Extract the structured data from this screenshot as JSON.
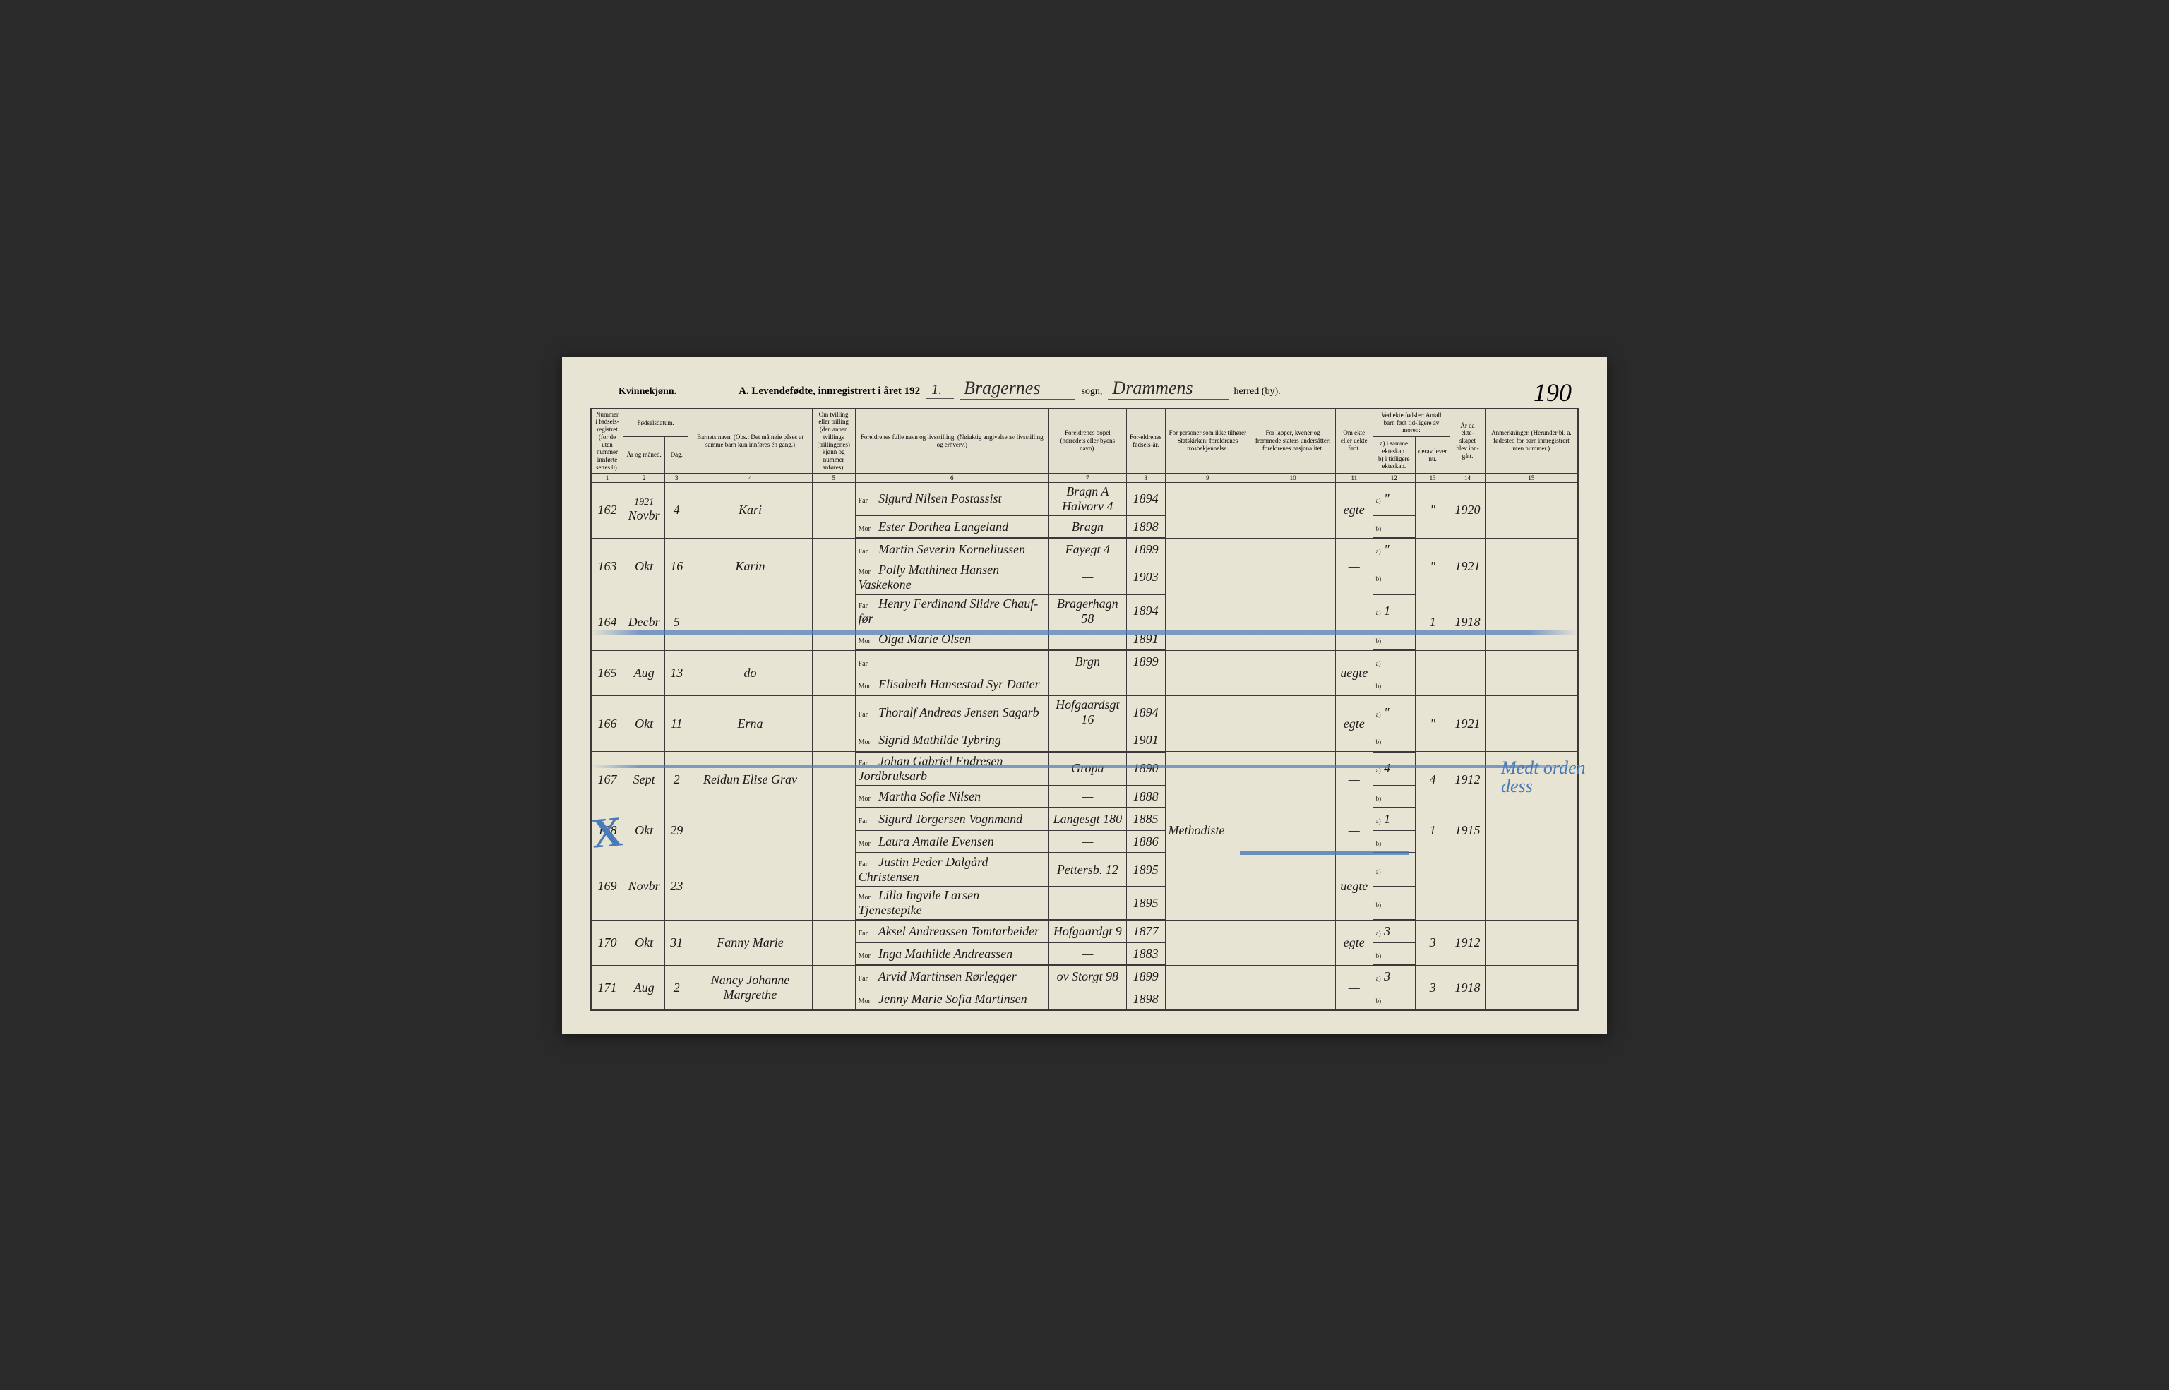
{
  "header": {
    "gender_label": "Kvinnekjønn.",
    "form_title_prefix": "A. Levendefødte, innregistrert i året 192",
    "year_suffix": "1.",
    "parish_label": "sogn,",
    "parish": "Bragernes",
    "district_label": "herred (by).",
    "district": "Drammens",
    "page_number": "190"
  },
  "columns": {
    "c1": "Nummer i fødsels-registret (for de uten nummer innførte settes 0).",
    "c2": "År og måned.",
    "c3": "Dag.",
    "c2_3_group": "Fødselsdatum.",
    "c4": "Barnets navn.\n(Obs.: Det må nøie påses at samme barn kun innføres én gang.)",
    "c5": "Om tvilling eller trilling (den annen tvillings (trillingenes) kjønn og nummer anføres).",
    "c6": "Foreldrenes fulle navn og livsstilling.\n(Nøiaktig angivelse av livsstilling og erhverv.)",
    "c7": "Foreldrenes bopel (herredets eller byens navn).",
    "c8": "For-eldrenes fødsels-år.",
    "c9": "For personer som ikke tilhører Statskirken: foreldrenes trosbekjennelse.",
    "c10": "For lapper, kvener og fremmede staters undersåtter: foreldrenes nasjonalitet.",
    "c11": "Om ekte eller uekte født.",
    "c12_group": "Ved ekte fødsler: Antall barn født tid-ligere av moren:",
    "c12a": "a) i samme ekteskap.",
    "c12b": "b) i tidligere ekteskap.",
    "c13": "derav lever nu.",
    "c14": "År da ekte-skapet blev inn-gått.",
    "c15": "Anmerkninger.\n(Herunder bl. a. fødested for barn innregistrert uten nummer.)"
  },
  "colnums": [
    "1",
    "2",
    "3",
    "4",
    "5",
    "6",
    "7",
    "8",
    "9",
    "10",
    "11",
    "12",
    "13",
    "14",
    "15"
  ],
  "rows": [
    {
      "num": "162",
      "year_note": "1921",
      "month": "Novbr",
      "day": "4",
      "child": "Kari",
      "far": "Sigurd Nilsen Postassist",
      "mor": "Ester Dorthea Langeland",
      "addr_f": "Bragn A Halvorv 4",
      "addr_m": "Bragn",
      "byear_f": "1894",
      "byear_m": "1898",
      "relig": "",
      "legit": "egte",
      "prev_a": "\"",
      "prev_b": "",
      "live": "\"",
      "myear": "1920",
      "notes": ""
    },
    {
      "num": "163",
      "month": "Okt",
      "day": "16",
      "child": "Karin",
      "far": "Martin Severin Korneliussen",
      "mor": "Polly Mathinea Hansen Vaskekone",
      "addr_f": "Fayegt 4",
      "addr_m": "—",
      "byear_f": "1899",
      "byear_m": "1903",
      "relig": "",
      "legit": "—",
      "prev_a": "\"",
      "prev_b": "",
      "live": "\"",
      "myear": "1921",
      "notes": ""
    },
    {
      "num": "164",
      "month": "Decbr",
      "day": "5",
      "child": "",
      "far": "Henry Ferdinand Slidre Chauf-før",
      "mor": "Olga Marie Olsen",
      "addr_f": "Bragerhagn 58",
      "addr_m": "—",
      "byear_f": "1894",
      "byear_m": "1891",
      "relig": "",
      "legit": "—",
      "prev_a": "1",
      "prev_b": "",
      "live": "1",
      "myear": "1918",
      "notes": ""
    },
    {
      "num": "165",
      "month": "Aug",
      "day": "13",
      "child": "do",
      "far": "",
      "mor": "Elisabeth Hansestad Syr Datter",
      "addr_f": "Brgn",
      "addr_m": "",
      "byear_f": "1899",
      "byear_m": "",
      "relig": "",
      "legit": "uegte",
      "prev_a": "",
      "prev_b": "",
      "live": "",
      "myear": "",
      "notes": ""
    },
    {
      "num": "166",
      "month": "Okt",
      "day": "11",
      "child": "Erna",
      "far": "Thoralf Andreas Jensen Sagarb",
      "mor": "Sigrid Mathilde Tybring",
      "addr_f": "Hofgaardsgt 16",
      "addr_m": "—",
      "byear_f": "1894",
      "byear_m": "1901",
      "relig": "",
      "legit": "egte",
      "prev_a": "\"",
      "prev_b": "",
      "live": "\"",
      "myear": "1921",
      "notes": ""
    },
    {
      "num": "167",
      "month": "Sept",
      "day": "2",
      "child": "Reidun Elise Grav",
      "far": "Johan Gabriel Endresen Jordbruksarb",
      "mor": "Martha Sofie Nilsen",
      "addr_f": "Gropa",
      "addr_m": "—",
      "byear_f": "1890",
      "byear_m": "1888",
      "relig": "",
      "legit": "—",
      "prev_a": "4",
      "prev_b": "",
      "live": "4",
      "myear": "1912",
      "notes": ""
    },
    {
      "num": "168",
      "month": "Okt",
      "day": "29",
      "child": "",
      "far": "Sigurd Torgersen Vognmand",
      "mor": "Laura Amalie Evensen",
      "addr_f": "Langesgt 180",
      "addr_m": "—",
      "byear_f": "1885",
      "byear_m": "1886",
      "relig": "Methodiste",
      "legit": "—",
      "prev_a": "1",
      "prev_b": "",
      "live": "1",
      "myear": "1915",
      "notes": ""
    },
    {
      "num": "169",
      "month": "Novbr",
      "day": "23",
      "child": "",
      "far": "Justin Peder Dalgård Christensen",
      "mor": "Lilla Ingvile Larsen Tjenestepike",
      "addr_f": "Pettersb. 12",
      "addr_m": "—",
      "byear_f": "1895",
      "byear_m": "1895",
      "relig": "",
      "legit": "uegte",
      "prev_a": "",
      "prev_b": "",
      "live": "",
      "myear": "",
      "notes": ""
    },
    {
      "num": "170",
      "month": "Okt",
      "day": "31",
      "child": "Fanny Marie",
      "far": "Aksel Andreassen Tomtarbeider",
      "mor": "Inga Mathilde Andreassen",
      "addr_f": "Hofgaardgt 9",
      "addr_m": "—",
      "byear_f": "1877",
      "byear_m": "1883",
      "relig": "",
      "legit": "egte",
      "prev_a": "3",
      "prev_b": "",
      "live": "3",
      "myear": "1912",
      "notes": ""
    },
    {
      "num": "171",
      "month": "Aug",
      "day": "2",
      "child": "Nancy Johanne Margrethe",
      "far": "Arvid Martinsen Rørlegger",
      "mor": "Jenny Marie Sofia Martinsen",
      "addr_f": "ov Storgt 98",
      "addr_m": "—",
      "byear_f": "1899",
      "byear_m": "1898",
      "relig": "",
      "legit": "—",
      "prev_a": "3",
      "prev_b": "",
      "live": "3",
      "myear": "1918",
      "notes": ""
    }
  ],
  "annotations": {
    "blue_note": "Medt orden dess",
    "blue_x": "X"
  },
  "styling": {
    "paper_color": "#e8e4d4",
    "ink_color": "#1a1a1a",
    "pencil_blue": "#4a7ab8",
    "border_color": "#3a3a3a"
  }
}
